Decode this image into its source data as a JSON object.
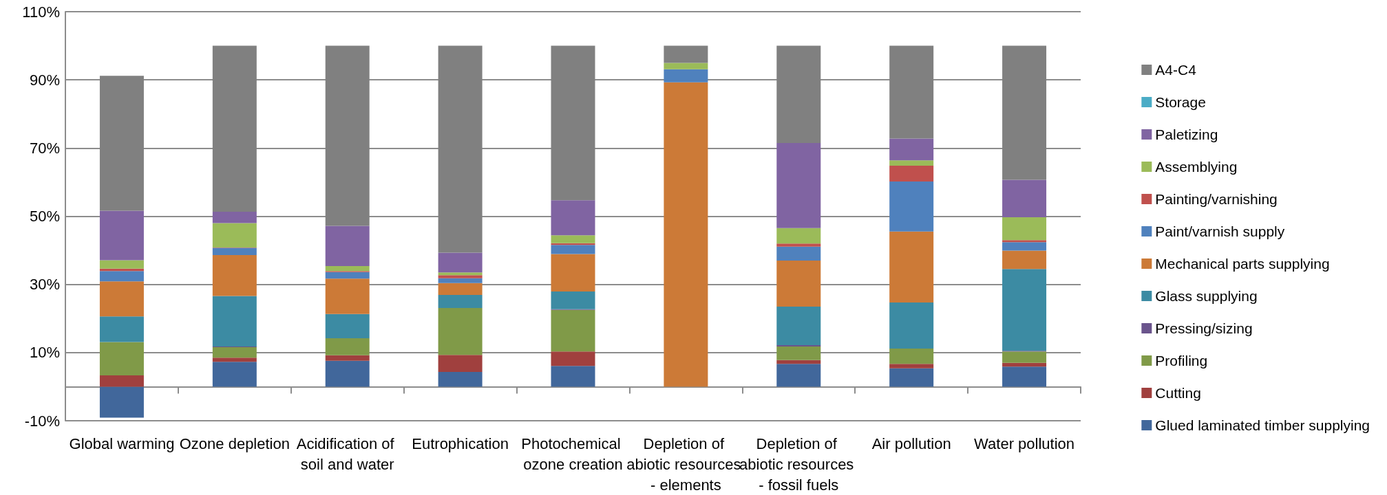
{
  "chart_data": {
    "type": "bar",
    "stacked": true,
    "categories": [
      "Global warming",
      "Ozone depletion",
      "Acidification of soil and water",
      "Eutrophication",
      "Photochemical ozone creation",
      "Depletion of abiotic resources - elements",
      "Depletion of abiotic resources - fossil fuels",
      "Air pollution",
      "Water pollution"
    ],
    "series": [
      {
        "name": "Glued laminated timber supplying",
        "color": "#41679b",
        "values": [
          -9.1,
          7.3,
          7.6,
          4.3,
          6.1,
          0,
          6.7,
          5.4,
          5.9
        ]
      },
      {
        "name": "Cutting",
        "color": "#a0403e",
        "values": [
          3.3,
          1.2,
          1.6,
          5.0,
          4.2,
          0,
          1.1,
          1.3,
          1.1
        ]
      },
      {
        "name": "Profiling",
        "color": "#809a48",
        "values": [
          9.8,
          3.1,
          5.0,
          13.8,
          12.2,
          0,
          4.0,
          4.5,
          3.3
        ]
      },
      {
        "name": "Pressing/sizing",
        "color": "#6a548c",
        "values": [
          0,
          0.2,
          0,
          0,
          0.2,
          0,
          0.4,
          0,
          0.2
        ]
      },
      {
        "name": "Glass supplying",
        "color": "#3c8ba3",
        "values": [
          7.5,
          14.8,
          7.1,
          3.8,
          5.2,
          0,
          11.3,
          13.5,
          24.0
        ]
      },
      {
        "name": "Mechanical parts supplying",
        "color": "#cc7a37",
        "values": [
          10.3,
          12.0,
          10.4,
          3.5,
          11.0,
          89.3,
          13.5,
          20.8,
          5.4
        ]
      },
      {
        "name": "Paint/varnish supply",
        "color": "#4f81bd",
        "values": [
          3.0,
          2.1,
          1.9,
          1.4,
          2.7,
          3.8,
          4.1,
          14.7,
          2.5
        ]
      },
      {
        "name": "Painting/varnishing",
        "color": "#c0504d",
        "values": [
          0.7,
          0.1,
          0.3,
          0.9,
          0.5,
          0,
          0.9,
          4.6,
          0.6
        ]
      },
      {
        "name": "Assemblying",
        "color": "#9bbb59",
        "values": [
          2.5,
          7.2,
          1.5,
          0.8,
          2.3,
          1.9,
          4.5,
          1.6,
          6.7
        ]
      },
      {
        "name": "Paletizing",
        "color": "#8064a2",
        "values": [
          14.5,
          3.3,
          11.8,
          5.8,
          10.3,
          0,
          25.0,
          6.4,
          11.0
        ]
      },
      {
        "name": "Storage",
        "color": "#4bacc6",
        "values": [
          0,
          0,
          0,
          0,
          0,
          0,
          0,
          0,
          0
        ]
      },
      {
        "name": "A4-C4",
        "color": "#808080",
        "values": [
          39.6,
          48.7,
          52.8,
          60.7,
          45.3,
          5.0,
          28.5,
          27.2,
          39.3
        ]
      }
    ],
    "ylim": [
      -10,
      110
    ],
    "yticks": [
      {
        "value": -10,
        "label": "-10%"
      },
      {
        "value": 10,
        "label": "10%"
      },
      {
        "value": 30,
        "label": "30%"
      },
      {
        "value": 50,
        "label": "50%"
      },
      {
        "value": 70,
        "label": "70%"
      },
      {
        "value": 90,
        "label": "90%"
      },
      {
        "value": 110,
        "label": "110%"
      }
    ],
    "grid": "y",
    "legend": "right"
  }
}
